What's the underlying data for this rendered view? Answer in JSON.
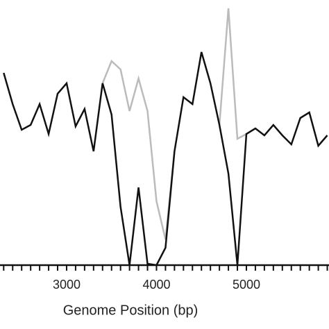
{
  "chart_data": {
    "type": "line",
    "xlabel": "Genome Position (bp)",
    "x": [
      2300,
      2400,
      2500,
      2600,
      2700,
      2800,
      2900,
      3000,
      3100,
      3200,
      3300,
      3400,
      3500,
      3600,
      3700,
      3800,
      3900,
      4000,
      4100,
      4200,
      4300,
      4400,
      4500,
      4600,
      4700,
      4800,
      4900,
      5000,
      5100,
      5200,
      5300,
      5400,
      5500,
      5600,
      5700,
      5800,
      5900
    ],
    "series": [
      {
        "color": "#bbbbbb",
        "values": [
          null,
          null,
          null,
          null,
          null,
          null,
          null,
          null,
          null,
          null,
          null,
          262,
          294,
          282,
          222,
          269,
          222,
          92,
          37,
          164,
          null,
          null,
          null,
          null,
          202,
          370,
          182,
          189,
          null,
          null,
          null,
          null,
          null,
          null,
          null,
          null,
          null
        ]
      },
      {
        "color": "#111111",
        "values": [
          277,
          232,
          195,
          202,
          232,
          189,
          247,
          262,
          200,
          225,
          164,
          262,
          217,
          84,
          0,
          112,
          2,
          0,
          25,
          164,
          242,
          232,
          307,
          262,
          202,
          132,
          0,
          189,
          197,
          187,
          202,
          187,
          174,
          212,
          220,
          172,
          187
        ]
      }
    ],
    "xlim": [
      2259,
      5919
    ],
    "ylim": [
      -92,
      382
    ],
    "xticks": [
      3000,
      4000,
      5000
    ],
    "xminorticks": [
      2300,
      2400,
      2500,
      2600,
      2700,
      2800,
      2900,
      3100,
      3200,
      3300,
      3400,
      3500,
      3600,
      3700,
      3800,
      3900,
      4100,
      4200,
      4300,
      4400,
      4500,
      4600,
      4700,
      4800,
      4900,
      5100,
      5200,
      5300,
      5400,
      5500,
      5600,
      5700,
      5800,
      5900
    ]
  }
}
